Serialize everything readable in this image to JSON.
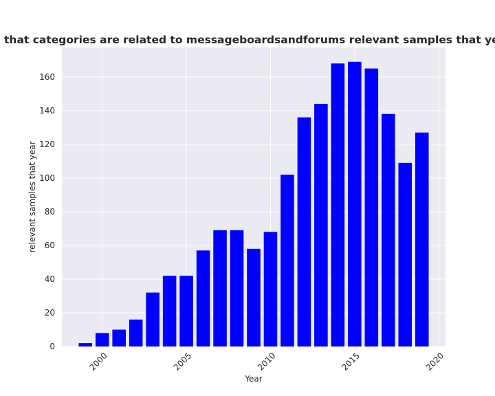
{
  "chart_data": {
    "type": "bar",
    "title": "Number of samples that categories are related to messageboardsandforums relevant samples that year in privacy policies",
    "xlabel": "Year",
    "ylabel": "relevant samples that year",
    "x": [
      1999,
      2000,
      2001,
      2002,
      2003,
      2004,
      2005,
      2006,
      2007,
      2008,
      2009,
      2010,
      2011,
      2012,
      2013,
      2014,
      2015,
      2016,
      2017,
      2018,
      2019
    ],
    "values": [
      2,
      8,
      10,
      16,
      32,
      42,
      42,
      57,
      69,
      69,
      58,
      68,
      102,
      136,
      144,
      168,
      169,
      165,
      138,
      109,
      127
    ],
    "xlim": [
      1997.6,
      2020.4
    ],
    "ylim": [
      0,
      177.5
    ],
    "xticks": [
      2000,
      2005,
      2010,
      2015,
      2020
    ],
    "yticks": [
      0,
      20,
      40,
      60,
      80,
      100,
      120,
      140,
      160
    ],
    "bar_color": "#0000ff",
    "plot_background": "#eaeaf2",
    "grid": true,
    "legend": "none"
  }
}
